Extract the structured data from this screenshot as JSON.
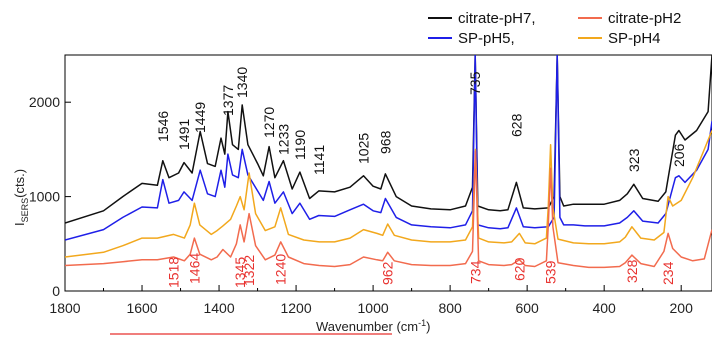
{
  "chart_data": {
    "type": "line",
    "xlabel": "Wavenumber (cm",
    "xlabel_sup": "-1",
    "xlabel_end": ")",
    "ylabel_main": "I",
    "ylabel_sub": "SERS",
    "ylabel_end": "(cts.)",
    "x_ticks": [
      1800,
      1600,
      1400,
      1200,
      1000,
      800,
      600,
      400,
      200
    ],
    "y_ticks": [
      0,
      1000,
      2000
    ],
    "xlim": [
      1800,
      120
    ],
    "ylim": [
      0,
      2500
    ],
    "x_reversed": true,
    "legend": [
      {
        "label": "citrate-pH7,",
        "color": "#111111"
      },
      {
        "label": "citrate-pH2",
        "color": "#f26b4e"
      },
      {
        "label": "SP-pH5,",
        "color": "#1f1fe8"
      },
      {
        "label": "SP-pH4",
        "color": "#f2a81d"
      }
    ],
    "peak_labels_black": [
      "1546",
      "1491",
      "1449",
      "1377",
      "1340",
      "1270",
      "1233",
      "1190",
      "1141",
      "1025",
      "968",
      "735",
      "628",
      "323",
      "206"
    ],
    "peak_labels_red": [
      "1518",
      "1464",
      "1345",
      "1322",
      "1240",
      "962",
      "734",
      "620",
      "539",
      "328",
      "234"
    ],
    "series": [
      {
        "name": "citrate-pH7,",
        "color": "#111111",
        "x": [
          1800,
          1700,
          1650,
          1600,
          1560,
          1546,
          1530,
          1505,
          1491,
          1470,
          1449,
          1430,
          1410,
          1395,
          1385,
          1377,
          1365,
          1350,
          1340,
          1325,
          1300,
          1285,
          1270,
          1255,
          1233,
          1210,
          1190,
          1165,
          1141,
          1100,
          1060,
          1025,
          1000,
          980,
          968,
          940,
          900,
          850,
          800,
          760,
          742,
          735,
          728,
          700,
          670,
          650,
          628,
          610,
          580,
          545,
          530,
          522,
          515,
          505,
          480,
          450,
          400,
          360,
          340,
          323,
          300,
          260,
          240,
          215,
          206,
          190,
          160,
          130,
          120
        ],
        "y": [
          720,
          850,
          1000,
          1140,
          1120,
          1380,
          1200,
          1250,
          1360,
          1250,
          1690,
          1350,
          1320,
          1620,
          1450,
          1900,
          1550,
          1500,
          1970,
          1550,
          1350,
          1220,
          1530,
          1200,
          1380,
          1080,
          1260,
          980,
          1060,
          1050,
          1100,
          1220,
          1110,
          1080,
          1240,
          1000,
          900,
          870,
          860,
          900,
          1100,
          2500,
          900,
          860,
          850,
          860,
          1150,
          880,
          870,
          880,
          1000,
          2500,
          1000,
          900,
          920,
          920,
          920,
          960,
          1030,
          1130,
          980,
          950,
          1050,
          1650,
          1700,
          1600,
          1700,
          1900,
          2500
        ]
      },
      {
        "name": "SP-pH5,",
        "color": "#1f1fe8",
        "x": [
          1800,
          1700,
          1650,
          1600,
          1560,
          1546,
          1530,
          1505,
          1491,
          1470,
          1449,
          1430,
          1410,
          1395,
          1385,
          1377,
          1365,
          1350,
          1340,
          1325,
          1300,
          1285,
          1270,
          1255,
          1233,
          1210,
          1190,
          1165,
          1141,
          1100,
          1060,
          1025,
          1000,
          980,
          968,
          940,
          900,
          850,
          800,
          760,
          742,
          735,
          728,
          700,
          670,
          650,
          628,
          610,
          580,
          545,
          530,
          522,
          515,
          505,
          480,
          450,
          400,
          360,
          340,
          323,
          300,
          260,
          240,
          215,
          206,
          190,
          160,
          130,
          120
        ],
        "y": [
          540,
          650,
          780,
          890,
          880,
          1180,
          930,
          960,
          1050,
          960,
          1280,
          1030,
          1000,
          1280,
          1100,
          1450,
          1230,
          1200,
          1500,
          1230,
          1060,
          960,
          1160,
          930,
          1050,
          820,
          930,
          760,
          800,
          790,
          860,
          920,
          850,
          830,
          980,
          780,
          700,
          680,
          670,
          700,
          850,
          2500,
          700,
          670,
          660,
          670,
          880,
          680,
          670,
          680,
          780,
          2500,
          780,
          700,
          700,
          690,
          690,
          720,
          780,
          850,
          740,
          720,
          820,
          1200,
          1220,
          1150,
          1280,
          1500,
          1800
        ]
      },
      {
        "name": "SP-pH4",
        "color": "#f2a81d",
        "x": [
          1800,
          1700,
          1650,
          1600,
          1560,
          1518,
          1490,
          1475,
          1464,
          1450,
          1420,
          1405,
          1390,
          1370,
          1355,
          1345,
          1335,
          1322,
          1305,
          1280,
          1255,
          1240,
          1220,
          1180,
          1140,
          1100,
          1060,
          1025,
          990,
          975,
          962,
          945,
          900,
          850,
          800,
          760,
          742,
          734,
          726,
          700,
          660,
          640,
          620,
          605,
          580,
          550,
          545,
          539,
          533,
          520,
          480,
          440,
          400,
          360,
          345,
          328,
          305,
          270,
          245,
          234,
          222,
          200,
          170,
          140,
          120
        ],
        "y": [
          360,
          410,
          480,
          560,
          560,
          600,
          560,
          700,
          930,
          700,
          600,
          640,
          690,
          760,
          900,
          1000,
          860,
          1250,
          820,
          640,
          680,
          880,
          600,
          540,
          520,
          520,
          560,
          650,
          610,
          590,
          710,
          590,
          540,
          520,
          520,
          540,
          680,
          1500,
          560,
          520,
          510,
          520,
          610,
          510,
          500,
          560,
          900,
          1550,
          880,
          550,
          510,
          500,
          500,
          520,
          570,
          680,
          560,
          540,
          620,
          1000,
          900,
          960,
          1200,
          1500,
          1700
        ]
      },
      {
        "name": "citrate-pH2",
        "color": "#f26b4e",
        "x": [
          1800,
          1700,
          1650,
          1600,
          1560,
          1518,
          1490,
          1475,
          1464,
          1450,
          1420,
          1405,
          1390,
          1370,
          1355,
          1345,
          1335,
          1322,
          1305,
          1280,
          1255,
          1240,
          1220,
          1180,
          1140,
          1100,
          1060,
          1025,
          990,
          975,
          962,
          945,
          900,
          850,
          800,
          760,
          742,
          734,
          726,
          700,
          660,
          640,
          620,
          605,
          580,
          550,
          545,
          539,
          533,
          520,
          480,
          440,
          400,
          360,
          345,
          328,
          305,
          270,
          245,
          234,
          222,
          200,
          170,
          140,
          120
        ],
        "y": [
          270,
          290,
          310,
          330,
          330,
          360,
          320,
          390,
          560,
          390,
          330,
          360,
          440,
          360,
          500,
          700,
          520,
          820,
          480,
          330,
          380,
          520,
          360,
          290,
          270,
          260,
          280,
          360,
          330,
          320,
          410,
          320,
          280,
          270,
          270,
          290,
          420,
          1480,
          320,
          280,
          270,
          280,
          330,
          270,
          260,
          320,
          700,
          1300,
          680,
          300,
          270,
          250,
          250,
          260,
          300,
          380,
          290,
          260,
          420,
          610,
          450,
          360,
          320,
          340,
          650
        ]
      }
    ]
  }
}
